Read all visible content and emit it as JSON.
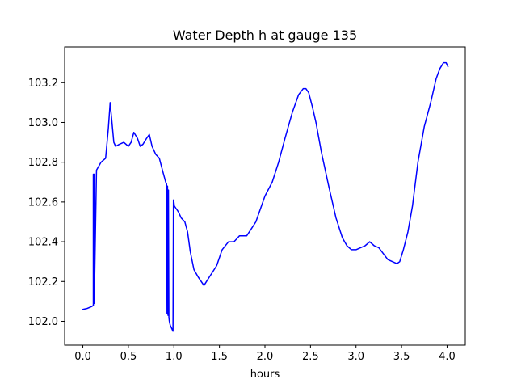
{
  "chart_data": {
    "type": "line",
    "title": "Water Depth h at gauge 135",
    "xlabel": "hours",
    "ylabel": "",
    "xlim": [
      -0.2,
      4.2
    ],
    "ylim": [
      101.88,
      103.38
    ],
    "xticks": [
      0.0,
      0.5,
      1.0,
      1.5,
      2.0,
      2.5,
      3.0,
      3.5,
      4.0
    ],
    "xtick_labels": [
      "0.0",
      "0.5",
      "1.0",
      "1.5",
      "2.0",
      "2.5",
      "3.0",
      "3.5",
      "4.0"
    ],
    "yticks": [
      102.0,
      102.2,
      102.4,
      102.6,
      102.8,
      103.0,
      103.2
    ],
    "ytick_labels": [
      "102.0",
      "102.2",
      "102.4",
      "102.6",
      "102.8",
      "103.0",
      "103.2"
    ],
    "grid": false,
    "series": [
      {
        "color": "#0000ff",
        "x": [
          0.0,
          0.05,
          0.1,
          0.115,
          0.115,
          0.125,
          0.125,
          0.15,
          0.2,
          0.25,
          0.28,
          0.3,
          0.32,
          0.34,
          0.36,
          0.4,
          0.45,
          0.5,
          0.53,
          0.56,
          0.6,
          0.63,
          0.66,
          0.7,
          0.73,
          0.76,
          0.8,
          0.84,
          0.88,
          0.91,
          0.92,
          0.925,
          0.93,
          0.935,
          0.94,
          0.945,
          0.95,
          0.955,
          0.96,
          0.97,
          0.98,
          0.99,
          0.995,
          1.0,
          1.005,
          1.02,
          1.05,
          1.08,
          1.12,
          1.15,
          1.18,
          1.22,
          1.27,
          1.33,
          1.4,
          1.47,
          1.53,
          1.6,
          1.66,
          1.72,
          1.8,
          1.9,
          2.0,
          2.08,
          2.15,
          2.22,
          2.3,
          2.37,
          2.42,
          2.45,
          2.48,
          2.52,
          2.56,
          2.62,
          2.7,
          2.78,
          2.85,
          2.9,
          2.95,
          3.0,
          3.05,
          3.1,
          3.15,
          3.2,
          3.25,
          3.3,
          3.35,
          3.4,
          3.45,
          3.48,
          3.52,
          3.57,
          3.62,
          3.68,
          3.75,
          3.82,
          3.88,
          3.92,
          3.96,
          3.99,
          4.01
        ],
        "y": [
          102.06,
          102.065,
          102.075,
          102.08,
          102.74,
          102.74,
          102.09,
          102.76,
          102.8,
          102.82,
          102.97,
          103.1,
          103.0,
          102.9,
          102.88,
          102.89,
          102.9,
          102.88,
          102.9,
          102.95,
          102.92,
          102.88,
          102.89,
          102.92,
          102.94,
          102.88,
          102.84,
          102.82,
          102.75,
          102.7,
          102.69,
          102.04,
          102.68,
          102.03,
          102.66,
          102.02,
          102.0,
          101.99,
          101.98,
          101.97,
          101.96,
          101.95,
          102.61,
          102.6,
          102.58,
          102.57,
          102.55,
          102.52,
          102.5,
          102.45,
          102.35,
          102.26,
          102.22,
          102.18,
          102.23,
          102.28,
          102.36,
          102.4,
          102.4,
          102.43,
          102.43,
          102.5,
          102.63,
          102.7,
          102.8,
          102.92,
          103.05,
          103.14,
          103.17,
          103.17,
          103.15,
          103.08,
          103.0,
          102.85,
          102.68,
          102.52,
          102.42,
          102.38,
          102.36,
          102.36,
          102.37,
          102.38,
          102.4,
          102.38,
          102.37,
          102.34,
          102.31,
          102.3,
          102.29,
          102.3,
          102.36,
          102.45,
          102.58,
          102.8,
          102.98,
          103.1,
          103.22,
          103.27,
          103.3,
          103.3,
          103.28
        ]
      }
    ]
  }
}
